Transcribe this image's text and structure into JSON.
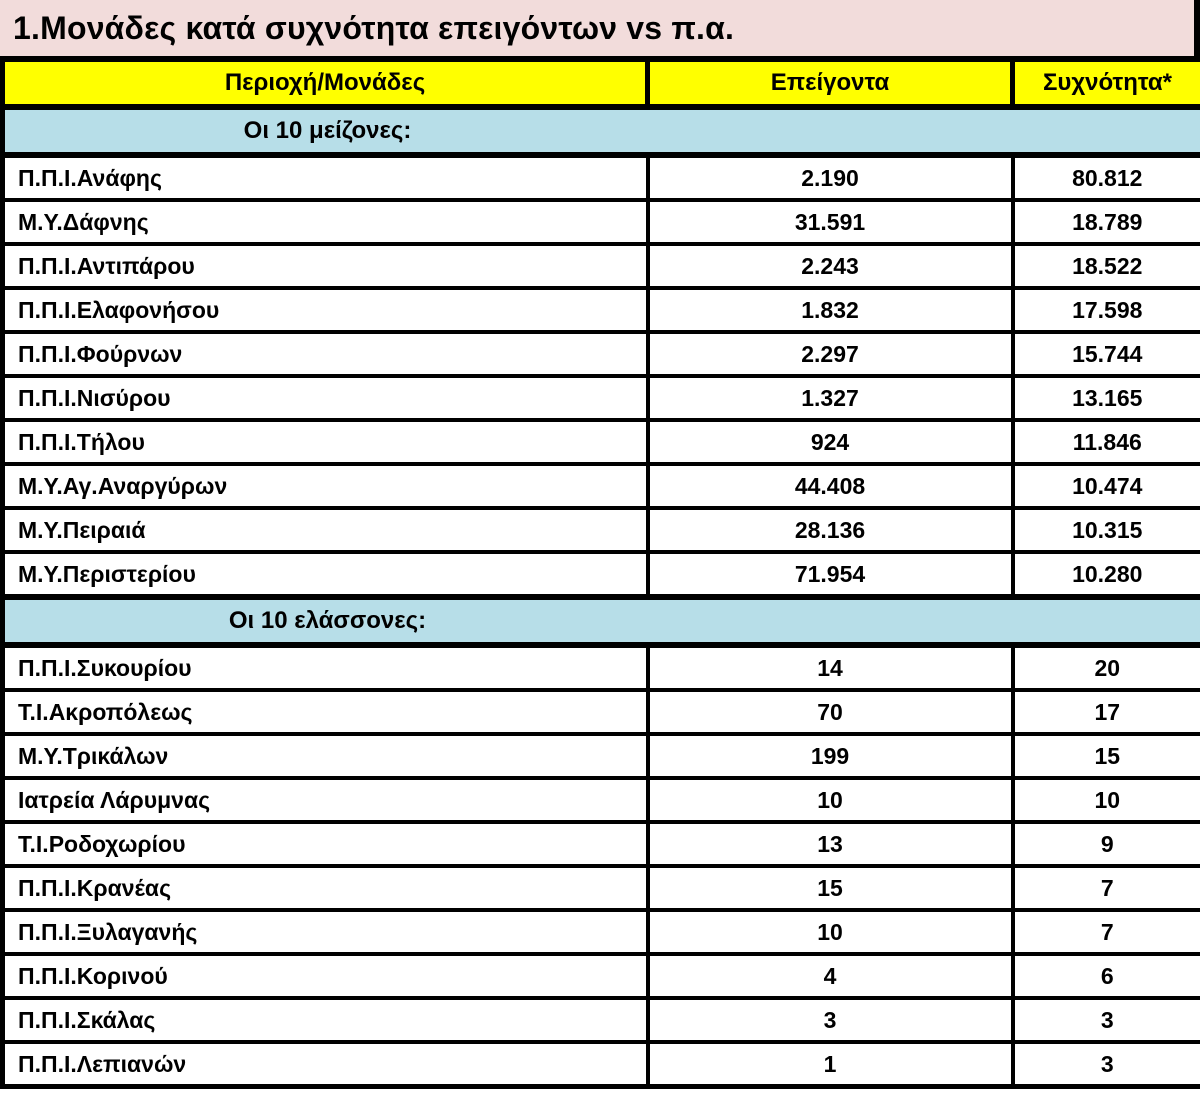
{
  "title": "1.Μονάδες κατά συχνότητα επειγόντων vs π.α.",
  "colors": {
    "title_bg": "#F2DCDB",
    "header_bg": "#FFFF00",
    "section_bg": "#B7DEE8",
    "border": "#000000",
    "text": "#000000"
  },
  "table": {
    "headers": [
      "Περιοχή/Μονάδες",
      "Επείγοντα",
      "Συχνότητα*"
    ],
    "sections": [
      {
        "label": "Οι 10 μείζονες:",
        "rows": [
          [
            "Π.Π.Ι.Ανάφης",
            "2.190",
            "80.812"
          ],
          [
            "Μ.Υ.Δάφνης",
            "31.591",
            "18.789"
          ],
          [
            "Π.Π.Ι.Αντιπάρου",
            "2.243",
            "18.522"
          ],
          [
            "Π.Π.Ι.Ελαφονήσου",
            "1.832",
            "17.598"
          ],
          [
            "Π.Π.Ι.Φούρνων",
            "2.297",
            "15.744"
          ],
          [
            "Π.Π.Ι.Νισύρου",
            "1.327",
            "13.165"
          ],
          [
            "Π.Π.Ι.Τήλου",
            "924",
            "11.846"
          ],
          [
            "Μ.Υ.Αγ.Αναργύρων",
            "44.408",
            "10.474"
          ],
          [
            "Μ.Υ.Πειραιά",
            "28.136",
            "10.315"
          ],
          [
            "Μ.Υ.Περιστερίου",
            "71.954",
            "10.280"
          ]
        ]
      },
      {
        "label": "Οι 10 ελάσσονες:",
        "rows": [
          [
            "Π.Π.Ι.Συκουρίου",
            "14",
            "20"
          ],
          [
            "Τ.Ι.Ακροπόλεως",
            "70",
            "17"
          ],
          [
            "Μ.Υ.Τρικάλων",
            "199",
            "15"
          ],
          [
            "Ιατρεία Λάρυμνας",
            "10",
            "10"
          ],
          [
            "Τ.Ι.Ροδοχωρίου",
            "13",
            "9"
          ],
          [
            "Π.Π.Ι.Κρανέας",
            "15",
            "7"
          ],
          [
            "Π.Π.Ι.Ξυλαγανής",
            "10",
            "7"
          ],
          [
            "Π.Π.Ι.Κορινού",
            "4",
            "6"
          ],
          [
            "Π.Π.Ι.Σκάλας",
            "3",
            "3"
          ],
          [
            "Π.Π.Ι.Λεπιανών",
            "1",
            "3"
          ]
        ]
      }
    ]
  }
}
